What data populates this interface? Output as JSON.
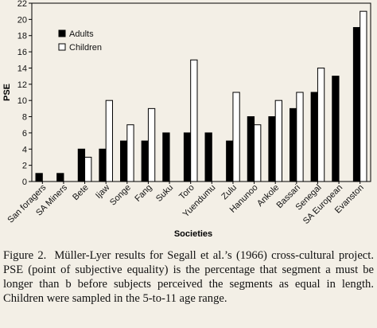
{
  "chart_data": {
    "type": "bar",
    "ylabel": "PSE",
    "xlabel": "Societies",
    "ylim": [
      0,
      22
    ],
    "yticks": [
      0,
      2,
      4,
      6,
      8,
      10,
      12,
      14,
      16,
      18,
      20,
      22
    ],
    "legend_position": "top-left",
    "grid": false,
    "categories": [
      "San foragers",
      "SA Miners",
      "Bete",
      "Ijaw",
      "Songe",
      "Fang",
      "Suku",
      "Toro",
      "Yuendumu",
      "Zulu",
      "Hanunoo",
      "Ankole",
      "Bassari",
      "Senegal",
      "SA European",
      "Evanston"
    ],
    "series": [
      {
        "name": "Adults",
        "color": "#000000",
        "values": [
          1,
          1,
          4,
          4,
          5,
          5,
          6,
          6,
          6,
          5,
          8,
          8,
          9,
          11,
          13,
          19
        ]
      },
      {
        "name": "Children",
        "color": "#ffffff",
        "values": [
          null,
          null,
          3,
          10,
          7,
          9,
          null,
          15,
          null,
          11,
          7,
          10,
          11,
          14,
          null,
          21
        ]
      }
    ]
  },
  "caption": {
    "lead": "Figure 2.",
    "text": "Müller-Lyer results for Segall et al.’s (1966) cross-cultural project. PSE (point of subjective equality) is the percentage that segment a must be longer than b before subjects perceived the segments as equal in length. Children were sampled in the 5-to-11 age range."
  }
}
